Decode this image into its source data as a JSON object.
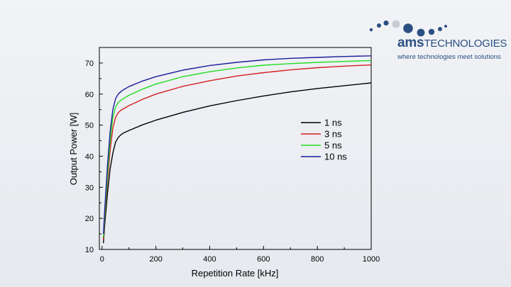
{
  "logo": {
    "brand_prefix": "ams",
    "brand_suffix": "TECHNOLOGIES",
    "tagline": "where technologies meet solutions",
    "color": "#2b4f81"
  },
  "chart_data": {
    "type": "line",
    "title": "",
    "xlabel": "Repetition Rate [kHz]",
    "ylabel": "Output Power [W]",
    "xlim": [
      -10,
      1000
    ],
    "ylim": [
      10,
      75
    ],
    "x_ticks": [
      0,
      200,
      400,
      600,
      800,
      1000
    ],
    "y_ticks": [
      10,
      20,
      30,
      40,
      50,
      60,
      70
    ],
    "grid": false,
    "legend_position": "right-middle",
    "series": [
      {
        "name": "1 ns",
        "color": "#000000",
        "x": [
          5,
          10,
          20,
          30,
          40,
          50,
          60,
          70,
          80,
          100,
          150,
          200,
          300,
          400,
          500,
          600,
          700,
          800,
          900,
          1000
        ],
        "y": [
          12,
          18,
          28,
          36,
          41,
          44.5,
          46,
          46.9,
          47.5,
          48.3,
          50.1,
          51.6,
          54.1,
          56.2,
          57.9,
          59.4,
          60.7,
          61.8,
          62.7,
          63.6
        ]
      },
      {
        "name": "3 ns",
        "color": "#d42020",
        "x": [
          5,
          10,
          20,
          30,
          40,
          50,
          60,
          70,
          80,
          100,
          150,
          200,
          300,
          400,
          500,
          600,
          700,
          800,
          900,
          1000
        ],
        "y": [
          13,
          20,
          32,
          42,
          49,
          52.5,
          54,
          54.8,
          55.3,
          56.3,
          58.3,
          60,
          62.5,
          64.3,
          65.8,
          66.9,
          67.8,
          68.5,
          69,
          69.4
        ]
      },
      {
        "name": "5 ns",
        "color": "#22dd22",
        "x": [
          5,
          10,
          20,
          30,
          40,
          50,
          60,
          70,
          80,
          100,
          150,
          200,
          300,
          400,
          500,
          600,
          700,
          800,
          900,
          1000
        ],
        "y": [
          14,
          21,
          34,
          45,
          52.5,
          55.8,
          57.3,
          58,
          58.6,
          59.6,
          61.6,
          63.2,
          65.6,
          67.2,
          68.4,
          69.3,
          69.8,
          70.2,
          70.5,
          70.8
        ]
      },
      {
        "name": "10 ns",
        "color": "#1c1c9c",
        "x": [
          5,
          10,
          20,
          30,
          40,
          50,
          60,
          70,
          80,
          100,
          150,
          200,
          300,
          400,
          500,
          600,
          700,
          800,
          900,
          1000
        ],
        "y": [
          15,
          23,
          37,
          48,
          55,
          58.5,
          60,
          60.8,
          61.4,
          62.4,
          64.2,
          65.6,
          67.7,
          69.2,
          70.2,
          71,
          71.5,
          71.8,
          72.1,
          72.3
        ]
      }
    ]
  }
}
